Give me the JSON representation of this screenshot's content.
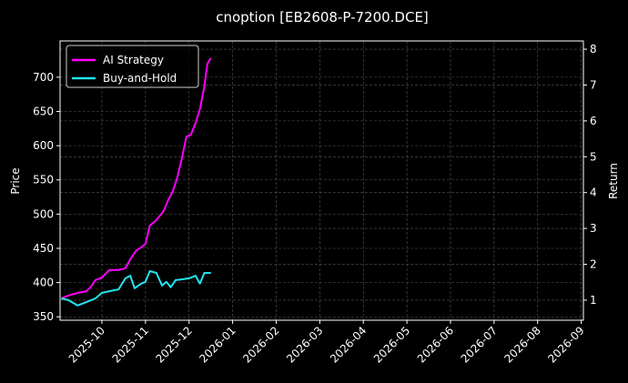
{
  "chart_data": {
    "type": "line",
    "title": "cnoption [EB2608-P-7200.DCE]",
    "ylabel": "Price",
    "y2label": "Return",
    "xlim": [
      0.04,
      12.05
    ],
    "xticks": [
      {
        "value": 1,
        "label": "2025-10"
      },
      {
        "value": 2,
        "label": "2025-11"
      },
      {
        "value": 3,
        "label": "2025-12"
      },
      {
        "value": 4,
        "label": "2026-01"
      },
      {
        "value": 5,
        "label": "2026-02"
      },
      {
        "value": 6,
        "label": "2026-03"
      },
      {
        "value": 7,
        "label": "2026-04"
      },
      {
        "value": 8,
        "label": "2026-05"
      },
      {
        "value": 9,
        "label": "2026-06"
      },
      {
        "value": 10,
        "label": "2026-07"
      },
      {
        "value": 11,
        "label": "2026-08"
      },
      {
        "value": 12,
        "label": "2026-09"
      }
    ],
    "ylim": [
      345,
      753
    ],
    "yticks": [
      350,
      400,
      450,
      500,
      550,
      600,
      650,
      700
    ],
    "y2lim": [
      0.44,
      8.23
    ],
    "y2ticks": [
      1,
      2,
      3,
      4,
      5,
      6,
      7,
      8
    ],
    "grid": true,
    "legend": "upper left",
    "series": [
      {
        "name": "AI Strategy",
        "color": "#ff00ff",
        "axis": "y2",
        "x": [
          0.07,
          0.23,
          0.44,
          0.65,
          0.75,
          0.85,
          1.0,
          1.17,
          1.38,
          1.54,
          1.65,
          1.79,
          1.9,
          2.0,
          2.1,
          2.25,
          2.42,
          2.52,
          2.63,
          2.73,
          2.83,
          2.94,
          3.04,
          3.15,
          3.25,
          3.35,
          3.42,
          3.5
        ],
        "values": [
          1.05,
          1.13,
          1.2,
          1.25,
          1.38,
          1.56,
          1.63,
          1.84,
          1.84,
          1.89,
          2.14,
          2.39,
          2.47,
          2.57,
          3.08,
          3.23,
          3.49,
          3.79,
          4.04,
          4.42,
          4.93,
          5.56,
          5.61,
          5.94,
          6.33,
          6.96,
          7.59,
          7.75
        ]
      },
      {
        "name": "Buy-and-Hold",
        "color": "#22e5f0",
        "axis": "y2",
        "x": [
          0.07,
          0.23,
          0.44,
          0.65,
          0.85,
          1.0,
          1.17,
          1.38,
          1.54,
          1.65,
          1.75,
          1.9,
          2.0,
          2.1,
          2.25,
          2.38,
          2.48,
          2.58,
          2.69,
          2.83,
          3.0,
          3.15,
          3.25,
          3.35,
          3.5
        ],
        "values": [
          1.05,
          1.0,
          0.85,
          0.95,
          1.05,
          1.2,
          1.25,
          1.3,
          1.61,
          1.68,
          1.33,
          1.46,
          1.51,
          1.81,
          1.76,
          1.41,
          1.51,
          1.36,
          1.56,
          1.58,
          1.61,
          1.68,
          1.46,
          1.76,
          1.76
        ]
      }
    ]
  }
}
